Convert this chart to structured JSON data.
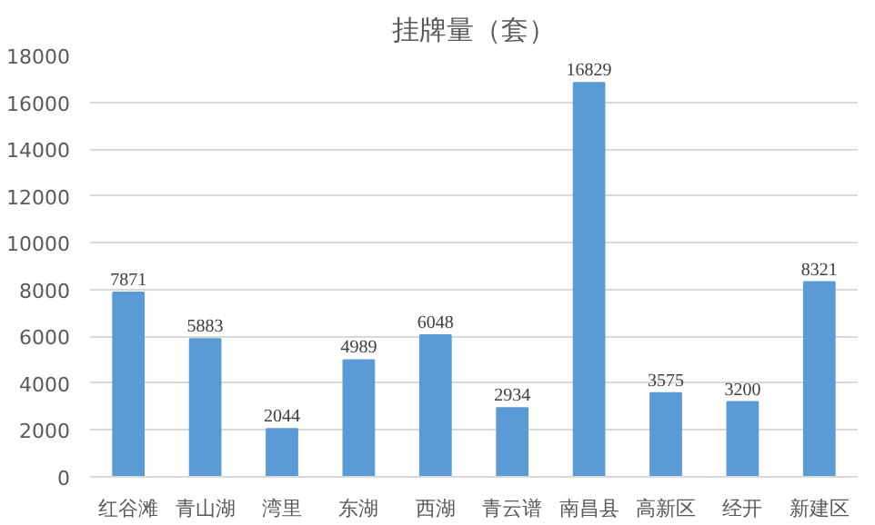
{
  "chart_data": {
    "type": "bar",
    "title": "挂牌量（套）",
    "categories": [
      "红谷滩",
      "青山湖",
      "湾里",
      "东湖",
      "西湖",
      "青云谱",
      "南昌县",
      "高新区",
      "经开",
      "新建区"
    ],
    "values": [
      7871,
      5883,
      2044,
      4989,
      6048,
      2934,
      16829,
      3575,
      3200,
      8321
    ],
    "color": "#5b9bd5",
    "ylim": [
      0,
      18000
    ],
    "yticks": [
      0,
      2000,
      4000,
      6000,
      8000,
      10000,
      12000,
      14000,
      16000,
      18000
    ],
    "grid": "y",
    "data_labels": true
  }
}
